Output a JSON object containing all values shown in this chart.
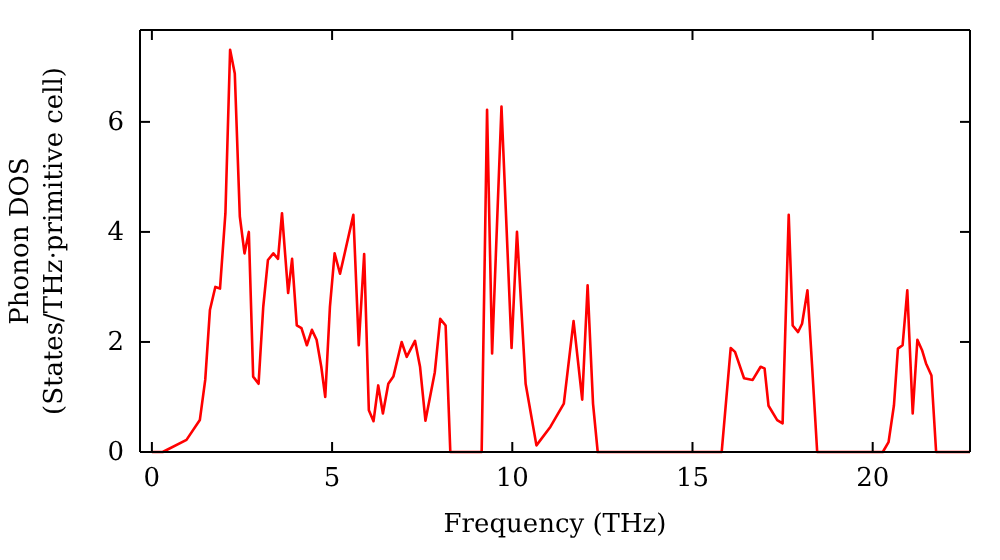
{
  "chart_data": {
    "type": "line",
    "xlabel": "Frequency (THz)",
    "ylabel": "Phonon DOS\n(States/THz·primitive cell)",
    "xlim": [
      -0.33,
      22.7
    ],
    "ylim": [
      0,
      7.67
    ],
    "xticks": [
      0,
      5,
      10,
      15,
      20
    ],
    "yticks": [
      0,
      2,
      4,
      6
    ],
    "grid": false,
    "marker": "none",
    "line_style": "solid",
    "series": [
      {
        "color": "#ff0000",
        "x": [
          0,
          0.3,
          0.96,
          1.33,
          1.48,
          1.61,
          1.76,
          1.89,
          2.04,
          2.17,
          2.3,
          2.44,
          2.57,
          2.69,
          2.81,
          2.96,
          3.09,
          3.22,
          3.37,
          3.5,
          3.61,
          3.78,
          3.89,
          4.02,
          4.15,
          4.3,
          4.44,
          4.57,
          4.7,
          4.81,
          4.94,
          5.07,
          5.22,
          5.37,
          5.59,
          5.74,
          5.89,
          6.02,
          6.15,
          6.28,
          6.41,
          6.56,
          6.7,
          6.93,
          7.07,
          7.3,
          7.44,
          7.59,
          7.85,
          8.0,
          8.15,
          8.28,
          9.15,
          9.3,
          9.44,
          9.7,
          9.98,
          10.13,
          10.37,
          10.67,
          11.06,
          11.43,
          11.7,
          11.94,
          12.09,
          12.24,
          12.37,
          15.81,
          16.06,
          16.18,
          16.43,
          16.67,
          16.89,
          17.0,
          17.11,
          17.35,
          17.5,
          17.67,
          17.78,
          17.93,
          18.04,
          18.19,
          18.32,
          18.46,
          20.28,
          20.44,
          20.59,
          20.7,
          20.83,
          20.96,
          21.11,
          21.24,
          21.37,
          21.48,
          21.63,
          21.76,
          22.7
        ],
        "values": [
          0,
          0,
          0.22,
          0.58,
          1.31,
          2.58,
          3.0,
          2.97,
          4.34,
          7.31,
          6.88,
          4.28,
          3.61,
          4.0,
          1.37,
          1.24,
          2.64,
          3.49,
          3.61,
          3.51,
          4.34,
          2.89,
          3.51,
          2.3,
          2.25,
          1.94,
          2.22,
          2.04,
          1.55,
          1.0,
          2.64,
          3.61,
          3.24,
          3.67,
          4.31,
          1.94,
          3.6,
          0.76,
          0.56,
          1.21,
          0.7,
          1.24,
          1.37,
          2.0,
          1.73,
          2.02,
          1.55,
          0.57,
          1.45,
          2.42,
          2.3,
          0,
          0,
          6.22,
          1.79,
          6.28,
          1.89,
          4.0,
          1.24,
          0.12,
          0.46,
          0.88,
          2.38,
          0.95,
          3.03,
          0.88,
          0,
          0,
          1.89,
          1.82,
          1.34,
          1.31,
          1.55,
          1.52,
          0.84,
          0.58,
          0.52,
          4.31,
          2.3,
          2.18,
          2.33,
          2.94,
          1.55,
          0,
          0,
          0.18,
          0.85,
          1.88,
          1.94,
          2.94,
          0.7,
          2.04,
          1.85,
          1.61,
          1.39,
          0,
          0
        ]
      }
    ]
  }
}
